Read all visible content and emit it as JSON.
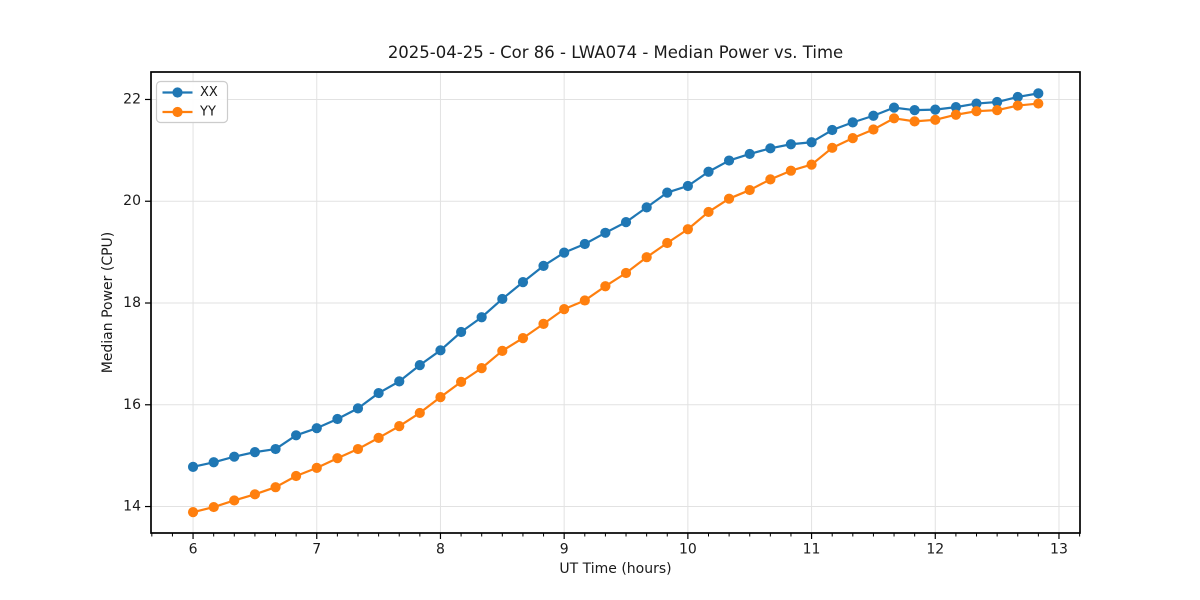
{
  "figure": {
    "background": "#ffffff"
  },
  "chart_data": {
    "type": "line",
    "title": "2025-04-25 - Cor 86 - LWA074 - Median Power vs. Time",
    "xlabel": "UT Time (hours)",
    "ylabel": "Median Power (CPU)",
    "xlim": [
      5.66,
      13.17
    ],
    "ylim": [
      13.48,
      22.54
    ],
    "x_ticks": [
      6,
      7,
      8,
      9,
      10,
      11,
      12,
      13
    ],
    "y_ticks": [
      14,
      16,
      18,
      20,
      22
    ],
    "x_minor_tick_step_hours": 0.16667,
    "grid": true,
    "legend_position": "upper-left",
    "x": [
      6.0,
      6.167,
      6.333,
      6.5,
      6.667,
      6.833,
      7.0,
      7.167,
      7.333,
      7.5,
      7.667,
      7.833,
      8.0,
      8.167,
      8.333,
      8.5,
      8.667,
      8.833,
      9.0,
      9.167,
      9.333,
      9.5,
      9.667,
      9.833,
      10.0,
      10.167,
      10.333,
      10.5,
      10.667,
      10.833,
      11.0,
      11.167,
      11.333,
      11.5,
      11.667,
      11.833,
      12.0,
      12.167,
      12.333,
      12.5,
      12.667,
      12.833
    ],
    "series": [
      {
        "name": "XX",
        "color": "#1f77b4",
        "values": [
          14.78,
          14.87,
          14.98,
          15.07,
          15.13,
          15.4,
          15.54,
          15.72,
          15.93,
          16.23,
          16.46,
          16.78,
          17.07,
          17.43,
          17.72,
          18.08,
          18.41,
          18.73,
          18.99,
          19.16,
          19.38,
          19.59,
          19.88,
          20.17,
          20.3,
          20.58,
          20.8,
          20.93,
          21.04,
          21.12,
          21.16,
          21.4,
          21.55,
          21.68,
          21.84,
          21.79,
          21.8,
          21.85,
          21.92,
          21.95,
          22.05,
          22.12
        ]
      },
      {
        "name": "YY",
        "color": "#ff7f0e",
        "values": [
          13.89,
          13.99,
          14.12,
          14.24,
          14.38,
          14.6,
          14.76,
          14.95,
          15.13,
          15.35,
          15.58,
          15.84,
          16.15,
          16.45,
          16.72,
          17.06,
          17.31,
          17.59,
          17.88,
          18.05,
          18.33,
          18.59,
          18.9,
          19.18,
          19.45,
          19.79,
          20.05,
          20.22,
          20.43,
          20.6,
          20.72,
          21.05,
          21.24,
          21.41,
          21.63,
          21.57,
          21.6,
          21.7,
          21.77,
          21.79,
          21.88,
          21.92
        ]
      }
    ],
    "colors": {
      "grid": "#e2e2e2",
      "spine": "#000000",
      "tick": "#000000",
      "text": "#1a1a1a",
      "legend_border": "#cccccc",
      "legend_bg": "#ffffff"
    }
  }
}
